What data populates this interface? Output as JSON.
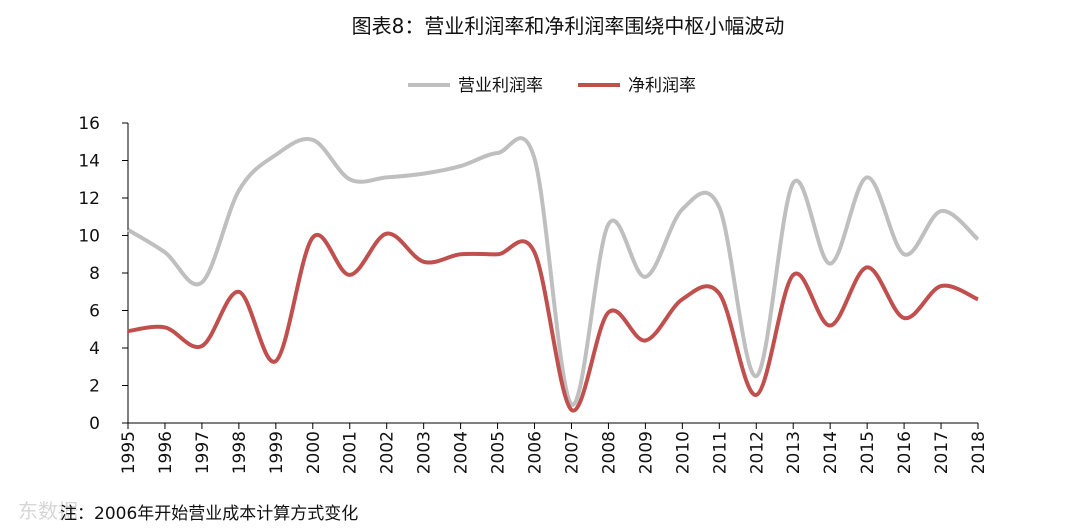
{
  "watermark": "东数据",
  "chart_data": {
    "type": "line",
    "title": "图表8：营业利润率和净利润率围绕中枢小幅波动",
    "xlabel": "",
    "ylabel": "",
    "x": [
      "1995",
      "1996",
      "1997",
      "1998",
      "1999",
      "2000",
      "2001",
      "2002",
      "2003",
      "2004",
      "2005",
      "2006",
      "2007",
      "2008",
      "2009",
      "2010",
      "2011",
      "2012",
      "2013",
      "2014",
      "2015",
      "2016",
      "2017",
      "2018"
    ],
    "ylim": [
      0,
      16
    ],
    "yticks": [
      "0",
      "2",
      "4",
      "6",
      "8",
      "10",
      "12",
      "14",
      "16"
    ],
    "legend_position": "top-center",
    "grid": false,
    "series": [
      {
        "name": "营业利润率",
        "color": "#bfbfbf",
        "values": [
          10.3,
          9.1,
          7.5,
          12.4,
          14.3,
          15.1,
          13.0,
          13.1,
          13.3,
          13.7,
          14.4,
          14.1,
          1.0,
          10.6,
          7.8,
          11.4,
          11.5,
          2.5,
          12.8,
          8.5,
          13.1,
          9.0,
          11.3,
          9.8
        ]
      },
      {
        "name": "净利润率",
        "color": "#c0504d",
        "values": [
          4.9,
          5.1,
          4.1,
          7.0,
          3.3,
          9.9,
          7.9,
          10.1,
          8.6,
          9.0,
          9.0,
          9.1,
          0.7,
          5.9,
          4.4,
          6.6,
          6.9,
          1.5,
          7.9,
          5.2,
          8.3,
          5.6,
          7.3,
          6.6
        ]
      }
    ],
    "note": "注：2006年开始营业成本计算方式变化"
  }
}
